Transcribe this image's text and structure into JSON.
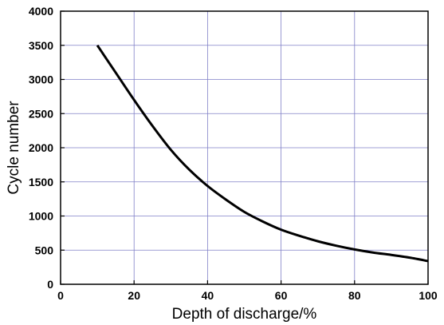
{
  "chart_data": {
    "type": "line",
    "title": "",
    "xlabel": "Depth of discharge/%",
    "ylabel": "Cycle number",
    "xlim": [
      0,
      100
    ],
    "ylim": [
      0,
      4000
    ],
    "xticks": [
      0,
      20,
      40,
      60,
      80,
      100
    ],
    "yticks": [
      0,
      500,
      1000,
      1500,
      2000,
      2500,
      3000,
      3500,
      4000
    ],
    "grid": true,
    "legend": "none",
    "colors": {
      "line": "#000000",
      "grid": "#8080c8",
      "frame": "#000000"
    },
    "series": [
      {
        "x": [
          10,
          15,
          20,
          25,
          30,
          35,
          40,
          45,
          50,
          55,
          60,
          65,
          70,
          75,
          80,
          85,
          90,
          95,
          100
        ],
        "y": [
          3500,
          3100,
          2700,
          2320,
          1970,
          1680,
          1440,
          1240,
          1060,
          920,
          800,
          710,
          630,
          565,
          510,
          465,
          430,
          390,
          340
        ]
      }
    ]
  }
}
